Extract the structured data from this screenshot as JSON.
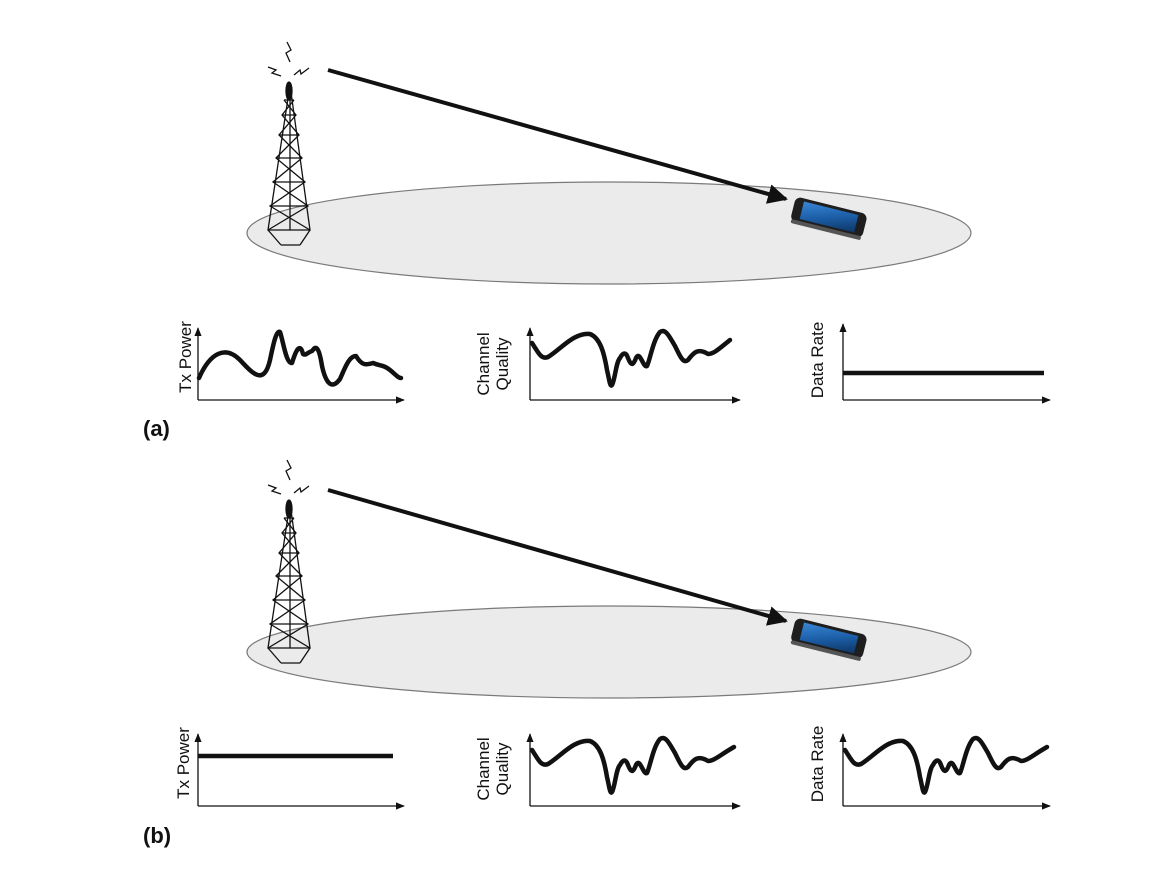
{
  "figure": {
    "panels": [
      {
        "label": "(a)",
        "plots": [
          {
            "ylabel": [
              "Tx Power"
            ],
            "curve": "wavy"
          },
          {
            "ylabel": [
              "Channel",
              "Quality"
            ],
            "curve": "channel"
          },
          {
            "ylabel": [
              "Data Rate"
            ],
            "curve": "flat"
          }
        ]
      },
      {
        "label": "(b)",
        "plots": [
          {
            "ylabel": [
              "Tx Power"
            ],
            "curve": "flat"
          },
          {
            "ylabel": [
              "Channel",
              "Quality"
            ],
            "curve": "channel"
          },
          {
            "ylabel": [
              "Data Rate"
            ],
            "curve": "channel"
          }
        ]
      }
    ],
    "icons": [
      "cell-tower-icon",
      "signal-spark-icon",
      "smartphone-icon",
      "coverage-area",
      "link-arrow"
    ],
    "colors": {
      "ink": "#111111",
      "coverage_fill": "#ebebeb",
      "coverage_stroke": "#7a7a7a",
      "phone_body": "#2a2a2a",
      "phone_screen": "#1c5fa8"
    }
  }
}
